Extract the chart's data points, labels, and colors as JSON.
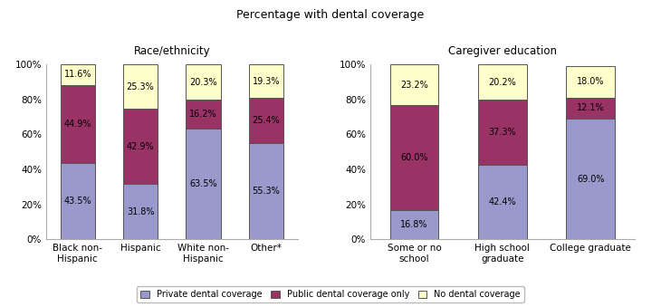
{
  "title": "Percentage with dental coverage",
  "left_subtitle": "Race/ethnicity",
  "right_subtitle": "Caregiver education",
  "left_categories": [
    "Black non-\nHispanic",
    "Hispanic",
    "White non-\nHispanic",
    "Other*"
  ],
  "right_categories": [
    "Some or no\nschool",
    "High school\ngraduate",
    "College graduate"
  ],
  "left_data": {
    "private": [
      43.5,
      31.8,
      63.5,
      55.3
    ],
    "public": [
      44.9,
      42.9,
      16.2,
      25.4
    ],
    "none": [
      11.6,
      25.3,
      20.3,
      19.3
    ]
  },
  "right_data": {
    "private": [
      16.8,
      42.4,
      69.0
    ],
    "public": [
      60.0,
      37.3,
      12.1
    ],
    "none": [
      23.2,
      20.2,
      18.0
    ]
  },
  "colors": {
    "private": "#9999cc",
    "public": "#993366",
    "none": "#ffffcc"
  },
  "legend_labels": [
    "Private dental coverage",
    "Public dental coverage only",
    "No dental coverage"
  ],
  "bar_width": 0.55,
  "ylim": [
    0,
    100
  ],
  "yticks": [
    0,
    20,
    40,
    60,
    80,
    100
  ],
  "yticklabels": [
    "0%",
    "20%",
    "40%",
    "60%",
    "80%",
    "100%"
  ]
}
